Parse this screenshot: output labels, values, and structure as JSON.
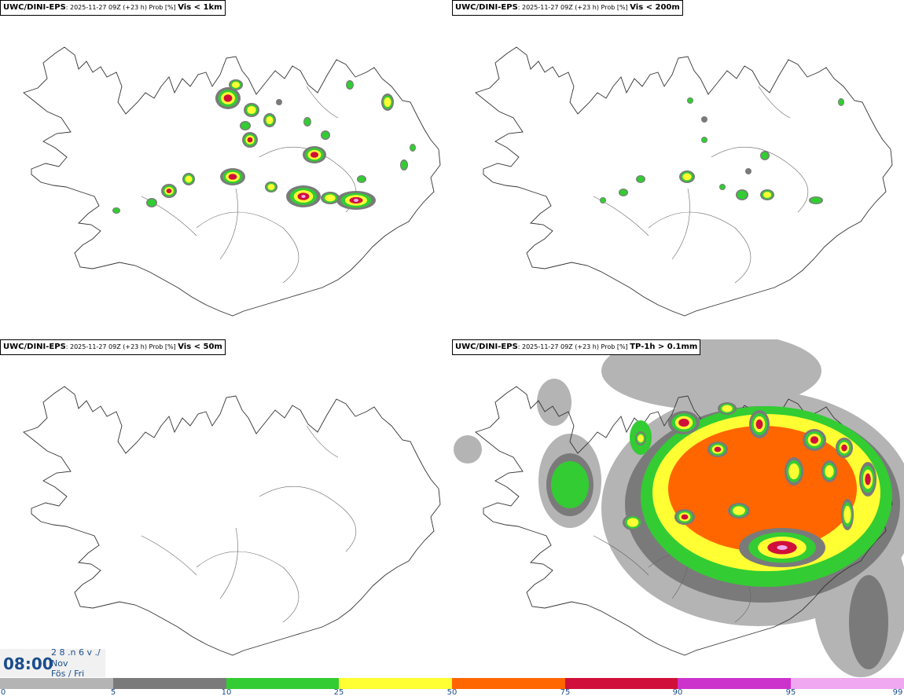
{
  "panels": [
    {
      "model": "UWC/DINI-EPS",
      "meta": ": 2025-11-27 09Z (+23 h) Prob [%] ",
      "var": "Vis < 1km"
    },
    {
      "model": "UWC/DINI-EPS",
      "meta": ": 2025-11-27 09Z (+23 h) Prob [%] ",
      "var": "Vis < 200m"
    },
    {
      "model": "UWC/DINI-EPS",
      "meta": ": 2025-11-27 09Z (+23 h) Prob [%] ",
      "var": "Vis < 50m"
    },
    {
      "model": "UWC/DINI-EPS",
      "meta": ": 2025-11-27 09Z (+23 h) Prob [%] ",
      "var": "TP-1h > 0.1mm"
    }
  ],
  "time": {
    "clock": "08:00",
    "line1": "2 8 .n 6 v ./",
    "line2": "Nov",
    "line3": "Fös / Fri"
  },
  "colorbar": {
    "ticks": [
      "0",
      "5",
      "10",
      "25",
      "50",
      "75",
      "90",
      "95",
      "99"
    ],
    "colors": [
      "#ffffff",
      "#b4b4b4",
      "#7a7a7a",
      "#33cc33",
      "#ffff33",
      "#ff6600",
      "#d0103a",
      "#cc33cc",
      "#f0a8f0"
    ]
  },
  "blobs": {
    "p0": [
      [
        290,
        125,
        16,
        14,
        3
      ],
      [
        320,
        140,
        10,
        9,
        2
      ],
      [
        343,
        153,
        8,
        9,
        2
      ],
      [
        300,
        108,
        9,
        7,
        2
      ],
      [
        318,
        178,
        10,
        10,
        3
      ],
      [
        312,
        160,
        7,
        6,
        1
      ],
      [
        400,
        197,
        15,
        11,
        3
      ],
      [
        386,
        250,
        22,
        14,
        4
      ],
      [
        453,
        255,
        25,
        12,
        4
      ],
      [
        296,
        225,
        16,
        11,
        3
      ],
      [
        215,
        243,
        10,
        9,
        3
      ],
      [
        240,
        228,
        8,
        8,
        2
      ],
      [
        193,
        258,
        7,
        6,
        1
      ],
      [
        345,
        238,
        8,
        7,
        2
      ],
      [
        493,
        130,
        8,
        11,
        2
      ],
      [
        420,
        252,
        12,
        8,
        2
      ],
      [
        148,
        268,
        5,
        4,
        1
      ],
      [
        445,
        108,
        5,
        6,
        1
      ],
      [
        460,
        228,
        6,
        5,
        1
      ],
      [
        391,
        155,
        5,
        6,
        1
      ],
      [
        414,
        172,
        6,
        6,
        1
      ],
      [
        514,
        210,
        5,
        7,
        1
      ],
      [
        525,
        188,
        4,
        5,
        1
      ],
      [
        355,
        130,
        4,
        4,
        0
      ]
    ],
    "p1": [
      [
        874,
        225,
        10,
        8,
        2
      ],
      [
        976,
        248,
        9,
        7,
        2
      ],
      [
        944,
        248,
        8,
        7,
        1
      ],
      [
        973,
        198,
        6,
        6,
        1
      ],
      [
        793,
        245,
        6,
        5,
        1
      ],
      [
        815,
        228,
        6,
        5,
        1
      ],
      [
        1038,
        255,
        9,
        5,
        1
      ],
      [
        878,
        128,
        4,
        4,
        1
      ],
      [
        1070,
        130,
        4,
        5,
        1
      ],
      [
        896,
        178,
        4,
        4,
        1
      ],
      [
        919,
        238,
        4,
        4,
        1
      ],
      [
        767,
        255,
        4,
        4,
        1
      ],
      [
        896,
        152,
        4,
        4,
        0
      ],
      [
        952,
        218,
        4,
        4,
        0
      ]
    ],
    "p3": [
      [
        995,
        697,
        55,
        25,
        4
      ],
      [
        870,
        538,
        20,
        15,
        3
      ],
      [
        913,
        572,
        13,
        10,
        3
      ],
      [
        966,
        540,
        13,
        18,
        3
      ],
      [
        1036,
        560,
        15,
        14,
        3
      ],
      [
        1074,
        570,
        11,
        13,
        3
      ],
      [
        1104,
        610,
        11,
        22,
        3
      ],
      [
        1078,
        655,
        8,
        20,
        2
      ],
      [
        871,
        658,
        13,
        10,
        3
      ],
      [
        815,
        558,
        7,
        9,
        2
      ],
      [
        925,
        520,
        12,
        8,
        2
      ],
      [
        805,
        665,
        13,
        10,
        2
      ],
      [
        1010,
        600,
        12,
        18,
        2
      ],
      [
        1055,
        600,
        10,
        14,
        2
      ],
      [
        940,
        650,
        14,
        10,
        2
      ]
    ]
  }
}
